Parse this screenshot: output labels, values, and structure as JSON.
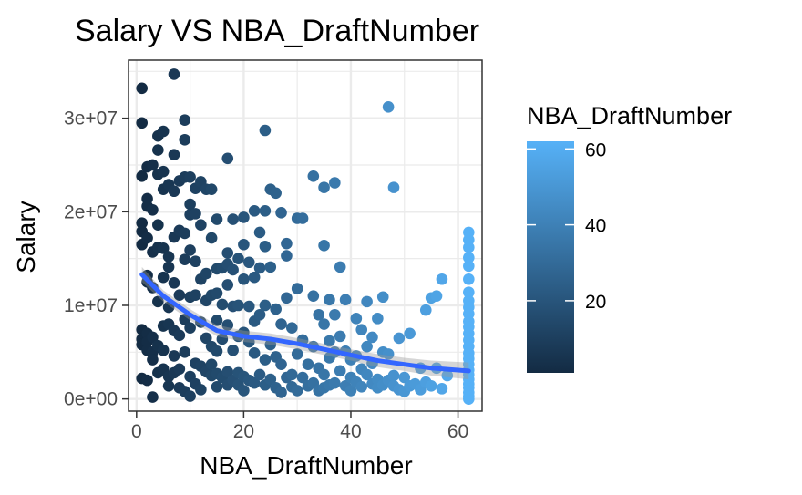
{
  "chart_data": {
    "type": "scatter",
    "title": "Salary VS NBA_DraftNumber",
    "xlabel": "NBA_DraftNumber",
    "ylabel": "Salary",
    "xlim": [
      -1.5,
      64.5
    ],
    "ylim": [
      -1300000,
      36200000
    ],
    "x_ticks": [
      0,
      20,
      40,
      60
    ],
    "x_tick_labels": [
      "0",
      "20",
      "40",
      "60"
    ],
    "y_ticks": [
      0,
      10000000,
      20000000,
      30000000
    ],
    "y_tick_labels": [
      "0e+00",
      "1e+07",
      "2e+07",
      "3e+07"
    ],
    "grid": true,
    "legend": {
      "title": "NBA_DraftNumber",
      "placement": "right",
      "type": "colorbar",
      "range": [
        1,
        62
      ],
      "ticks": [
        20,
        40,
        60
      ],
      "tick_labels": [
        "20",
        "40",
        "60"
      ],
      "colors": {
        "low": "#132B43",
        "high": "#56B1F7"
      }
    },
    "points": [
      [
        1,
        33200000
      ],
      [
        1,
        29500000
      ],
      [
        1,
        23800000
      ],
      [
        1,
        18800000
      ],
      [
        1,
        17900000
      ],
      [
        1,
        16500000
      ],
      [
        1,
        7400000
      ],
      [
        1,
        6400000
      ],
      [
        1,
        5800000
      ],
      [
        1,
        2200000
      ],
      [
        2,
        24800000
      ],
      [
        2,
        21400000
      ],
      [
        2,
        20600000
      ],
      [
        2,
        17200000
      ],
      [
        2,
        13200000
      ],
      [
        2,
        12500000
      ],
      [
        2,
        7000000
      ],
      [
        2,
        6100000
      ],
      [
        2,
        5200000
      ],
      [
        2,
        2000000
      ],
      [
        3,
        25000000
      ],
      [
        3,
        20200000
      ],
      [
        3,
        15700000
      ],
      [
        3,
        11900000
      ],
      [
        3,
        6600000
      ],
      [
        3,
        5000000
      ],
      [
        3,
        4200000
      ],
      [
        3,
        200000
      ],
      [
        4,
        28100000
      ],
      [
        4,
        26600000
      ],
      [
        4,
        24000000
      ],
      [
        4,
        18600000
      ],
      [
        4,
        16200000
      ],
      [
        4,
        10400000
      ],
      [
        4,
        5700000
      ],
      [
        4,
        2800000
      ],
      [
        5,
        28600000
      ],
      [
        5,
        24300000
      ],
      [
        5,
        22400000
      ],
      [
        5,
        16100000
      ],
      [
        5,
        13000000
      ],
      [
        5,
        7800000
      ],
      [
        5,
        5200000
      ],
      [
        5,
        3200000
      ],
      [
        6,
        22900000
      ],
      [
        6,
        15200000
      ],
      [
        6,
        14100000
      ],
      [
        6,
        9800000
      ],
      [
        6,
        8000000
      ],
      [
        6,
        2400000
      ],
      [
        6,
        1400000
      ],
      [
        7,
        34700000
      ],
      [
        7,
        26100000
      ],
      [
        7,
        22200000
      ],
      [
        7,
        17300000
      ],
      [
        7,
        12400000
      ],
      [
        7,
        7300000
      ],
      [
        7,
        4600000
      ],
      [
        7,
        2800000
      ],
      [
        8,
        23300000
      ],
      [
        8,
        18000000
      ],
      [
        8,
        11100000
      ],
      [
        8,
        6800000
      ],
      [
        8,
        3200000
      ],
      [
        8,
        1200000
      ],
      [
        9,
        29800000
      ],
      [
        9,
        27700000
      ],
      [
        9,
        23700000
      ],
      [
        9,
        17700000
      ],
      [
        9,
        14900000
      ],
      [
        9,
        8500000
      ],
      [
        9,
        5000000
      ],
      [
        9,
        800000
      ],
      [
        10,
        23700000
      ],
      [
        10,
        20800000
      ],
      [
        10,
        19700000
      ],
      [
        10,
        15900000
      ],
      [
        10,
        10900000
      ],
      [
        10,
        7600000
      ],
      [
        10,
        2400000
      ],
      [
        10,
        300000
      ],
      [
        11,
        22500000
      ],
      [
        11,
        19800000
      ],
      [
        11,
        14700000
      ],
      [
        11,
        11100000
      ],
      [
        11,
        3800000
      ],
      [
        11,
        1600000
      ],
      [
        12,
        23200000
      ],
      [
        12,
        18600000
      ],
      [
        12,
        12800000
      ],
      [
        12,
        8200000
      ],
      [
        12,
        3500000
      ],
      [
        12,
        1000000
      ],
      [
        13,
        22400000
      ],
      [
        13,
        13400000
      ],
      [
        13,
        10500000
      ],
      [
        13,
        6500000
      ],
      [
        13,
        2900000
      ],
      [
        14,
        22400000
      ],
      [
        14,
        17200000
      ],
      [
        14,
        11100000
      ],
      [
        14,
        5600000
      ],
      [
        14,
        3700000
      ],
      [
        14,
        2500000
      ],
      [
        15,
        19200000
      ],
      [
        15,
        13900000
      ],
      [
        15,
        11300000
      ],
      [
        15,
        8400000
      ],
      [
        15,
        5100000
      ],
      [
        15,
        2700000
      ],
      [
        15,
        1300000
      ],
      [
        16,
        14000000
      ],
      [
        16,
        10100000
      ],
      [
        16,
        6400000
      ],
      [
        16,
        2300000
      ],
      [
        17,
        25700000
      ],
      [
        17,
        15600000
      ],
      [
        17,
        14400000
      ],
      [
        17,
        12200000
      ],
      [
        17,
        7900000
      ],
      [
        17,
        2900000
      ],
      [
        17,
        1500000
      ],
      [
        18,
        19200000
      ],
      [
        18,
        13800000
      ],
      [
        18,
        9900000
      ],
      [
        18,
        5200000
      ],
      [
        18,
        2000000
      ],
      [
        19,
        15000000
      ],
      [
        19,
        10000000
      ],
      [
        19,
        6700000
      ],
      [
        19,
        2800000
      ],
      [
        19,
        1500000
      ],
      [
        20,
        19400000
      ],
      [
        20,
        16500000
      ],
      [
        20,
        12800000
      ],
      [
        20,
        7100000
      ],
      [
        20,
        2400000
      ],
      [
        20,
        900000
      ],
      [
        21,
        14600000
      ],
      [
        21,
        9900000
      ],
      [
        21,
        6100000
      ],
      [
        21,
        2000000
      ],
      [
        22,
        20100000
      ],
      [
        22,
        13000000
      ],
      [
        22,
        8300000
      ],
      [
        22,
        4900000
      ],
      [
        22,
        1700000
      ],
      [
        23,
        17800000
      ],
      [
        23,
        14000000
      ],
      [
        23,
        9000000
      ],
      [
        23,
        2600000
      ],
      [
        24,
        28700000
      ],
      [
        24,
        20100000
      ],
      [
        24,
        16300000
      ],
      [
        24,
        10000000
      ],
      [
        24,
        4200000
      ],
      [
        24,
        1500000
      ],
      [
        25,
        22400000
      ],
      [
        25,
        14100000
      ],
      [
        25,
        5800000
      ],
      [
        25,
        2100000
      ],
      [
        26,
        22000000
      ],
      [
        26,
        9600000
      ],
      [
        26,
        4500000
      ],
      [
        26,
        1200000
      ],
      [
        27,
        19900000
      ],
      [
        27,
        8000000
      ],
      [
        27,
        3700000
      ],
      [
        27,
        700000
      ],
      [
        28,
        16600000
      ],
      [
        28,
        15300000
      ],
      [
        28,
        10800000
      ],
      [
        28,
        2300000
      ],
      [
        29,
        7600000
      ],
      [
        29,
        2600000
      ],
      [
        29,
        1300000
      ],
      [
        30,
        19300000
      ],
      [
        30,
        11800000
      ],
      [
        30,
        4800000
      ],
      [
        30,
        900000
      ],
      [
        31,
        19300000
      ],
      [
        31,
        6300000
      ],
      [
        31,
        2300000
      ],
      [
        32,
        3700000
      ],
      [
        32,
        1400000
      ],
      [
        33,
        23800000
      ],
      [
        33,
        11000000
      ],
      [
        33,
        5600000
      ],
      [
        33,
        1700000
      ],
      [
        34,
        9000000
      ],
      [
        34,
        3300000
      ],
      [
        34,
        900000
      ],
      [
        35,
        22600000
      ],
      [
        35,
        16400000
      ],
      [
        35,
        8000000
      ],
      [
        35,
        2600000
      ],
      [
        35,
        1200000
      ],
      [
        36,
        10600000
      ],
      [
        36,
        6200000
      ],
      [
        36,
        4400000
      ],
      [
        36,
        1500000
      ],
      [
        37,
        23100000
      ],
      [
        37,
        9000000
      ],
      [
        37,
        5000000
      ],
      [
        37,
        1700000
      ],
      [
        38,
        14100000
      ],
      [
        38,
        6700000
      ],
      [
        38,
        3000000
      ],
      [
        39,
        10600000
      ],
      [
        39,
        5100000
      ],
      [
        39,
        1400000
      ],
      [
        40,
        4200000
      ],
      [
        40,
        2300000
      ],
      [
        40,
        900000
      ],
      [
        41,
        8600000
      ],
      [
        41,
        4600000
      ],
      [
        41,
        1800000
      ],
      [
        42,
        7400000
      ],
      [
        42,
        3200000
      ],
      [
        42,
        1300000
      ],
      [
        43,
        10400000
      ],
      [
        43,
        5600000
      ],
      [
        43,
        2600000
      ],
      [
        44,
        6600000
      ],
      [
        44,
        3800000
      ],
      [
        44,
        1600000
      ],
      [
        45,
        8600000
      ],
      [
        45,
        2100000
      ],
      [
        45,
        1200000
      ],
      [
        46,
        10900000
      ],
      [
        46,
        5000000
      ],
      [
        46,
        1500000
      ],
      [
        47,
        31200000
      ],
      [
        47,
        4800000
      ],
      [
        47,
        2000000
      ],
      [
        48,
        22600000
      ],
      [
        48,
        2500000
      ],
      [
        48,
        1400000
      ],
      [
        49,
        6500000
      ],
      [
        49,
        1000000
      ],
      [
        50,
        2300000
      ],
      [
        50,
        800000
      ],
      [
        51,
        7000000
      ],
      [
        51,
        1400000
      ],
      [
        52,
        1600000
      ],
      [
        53,
        3300000
      ],
      [
        53,
        1000000
      ],
      [
        54,
        9500000
      ],
      [
        54,
        1800000
      ],
      [
        55,
        10800000
      ],
      [
        55,
        1400000
      ],
      [
        56,
        11000000
      ],
      [
        56,
        3300000
      ],
      [
        57,
        12800000
      ],
      [
        57,
        1100000
      ],
      [
        58,
        2500000
      ],
      [
        62,
        17800000
      ],
      [
        62,
        17000000
      ],
      [
        62,
        16200000
      ],
      [
        62,
        15100000
      ],
      [
        62,
        14200000
      ],
      [
        62,
        12800000
      ],
      [
        62,
        11400000
      ],
      [
        62,
        10500000
      ],
      [
        62,
        9800000
      ],
      [
        62,
        9100000
      ],
      [
        62,
        8300000
      ],
      [
        62,
        7700000
      ],
      [
        62,
        7000000
      ],
      [
        62,
        6300000
      ],
      [
        62,
        5600000
      ],
      [
        62,
        4900000
      ],
      [
        62,
        4300000
      ],
      [
        62,
        3700000
      ],
      [
        62,
        3100000
      ],
      [
        62,
        2600000
      ],
      [
        62,
        2100000
      ],
      [
        62,
        1600000
      ],
      [
        62,
        1200000
      ],
      [
        62,
        700000
      ],
      [
        62,
        300000
      ],
      [
        62,
        0
      ]
    ],
    "smooth_line": {
      "color": "#3366FF",
      "points": [
        [
          1,
          13300000
        ],
        [
          5,
          11000000
        ],
        [
          10,
          9000000
        ],
        [
          15,
          7300000
        ],
        [
          20,
          6700000
        ],
        [
          25,
          6400000
        ],
        [
          30,
          5900000
        ],
        [
          35,
          5300000
        ],
        [
          40,
          4700000
        ],
        [
          45,
          4100000
        ],
        [
          50,
          3700000
        ],
        [
          55,
          3300000
        ],
        [
          62,
          3000000
        ]
      ],
      "band": {
        "upper": [
          14100000,
          11600000,
          9600000,
          7900000,
          7300000,
          7000000,
          6500000,
          5900000,
          5300000,
          4800000,
          4400000,
          4100000,
          3900000
        ],
        "lower": [
          12500000,
          10400000,
          8400000,
          6700000,
          6100000,
          5800000,
          5300000,
          4700000,
          4100000,
          3400000,
          3000000,
          2500000,
          2100000
        ]
      }
    }
  }
}
